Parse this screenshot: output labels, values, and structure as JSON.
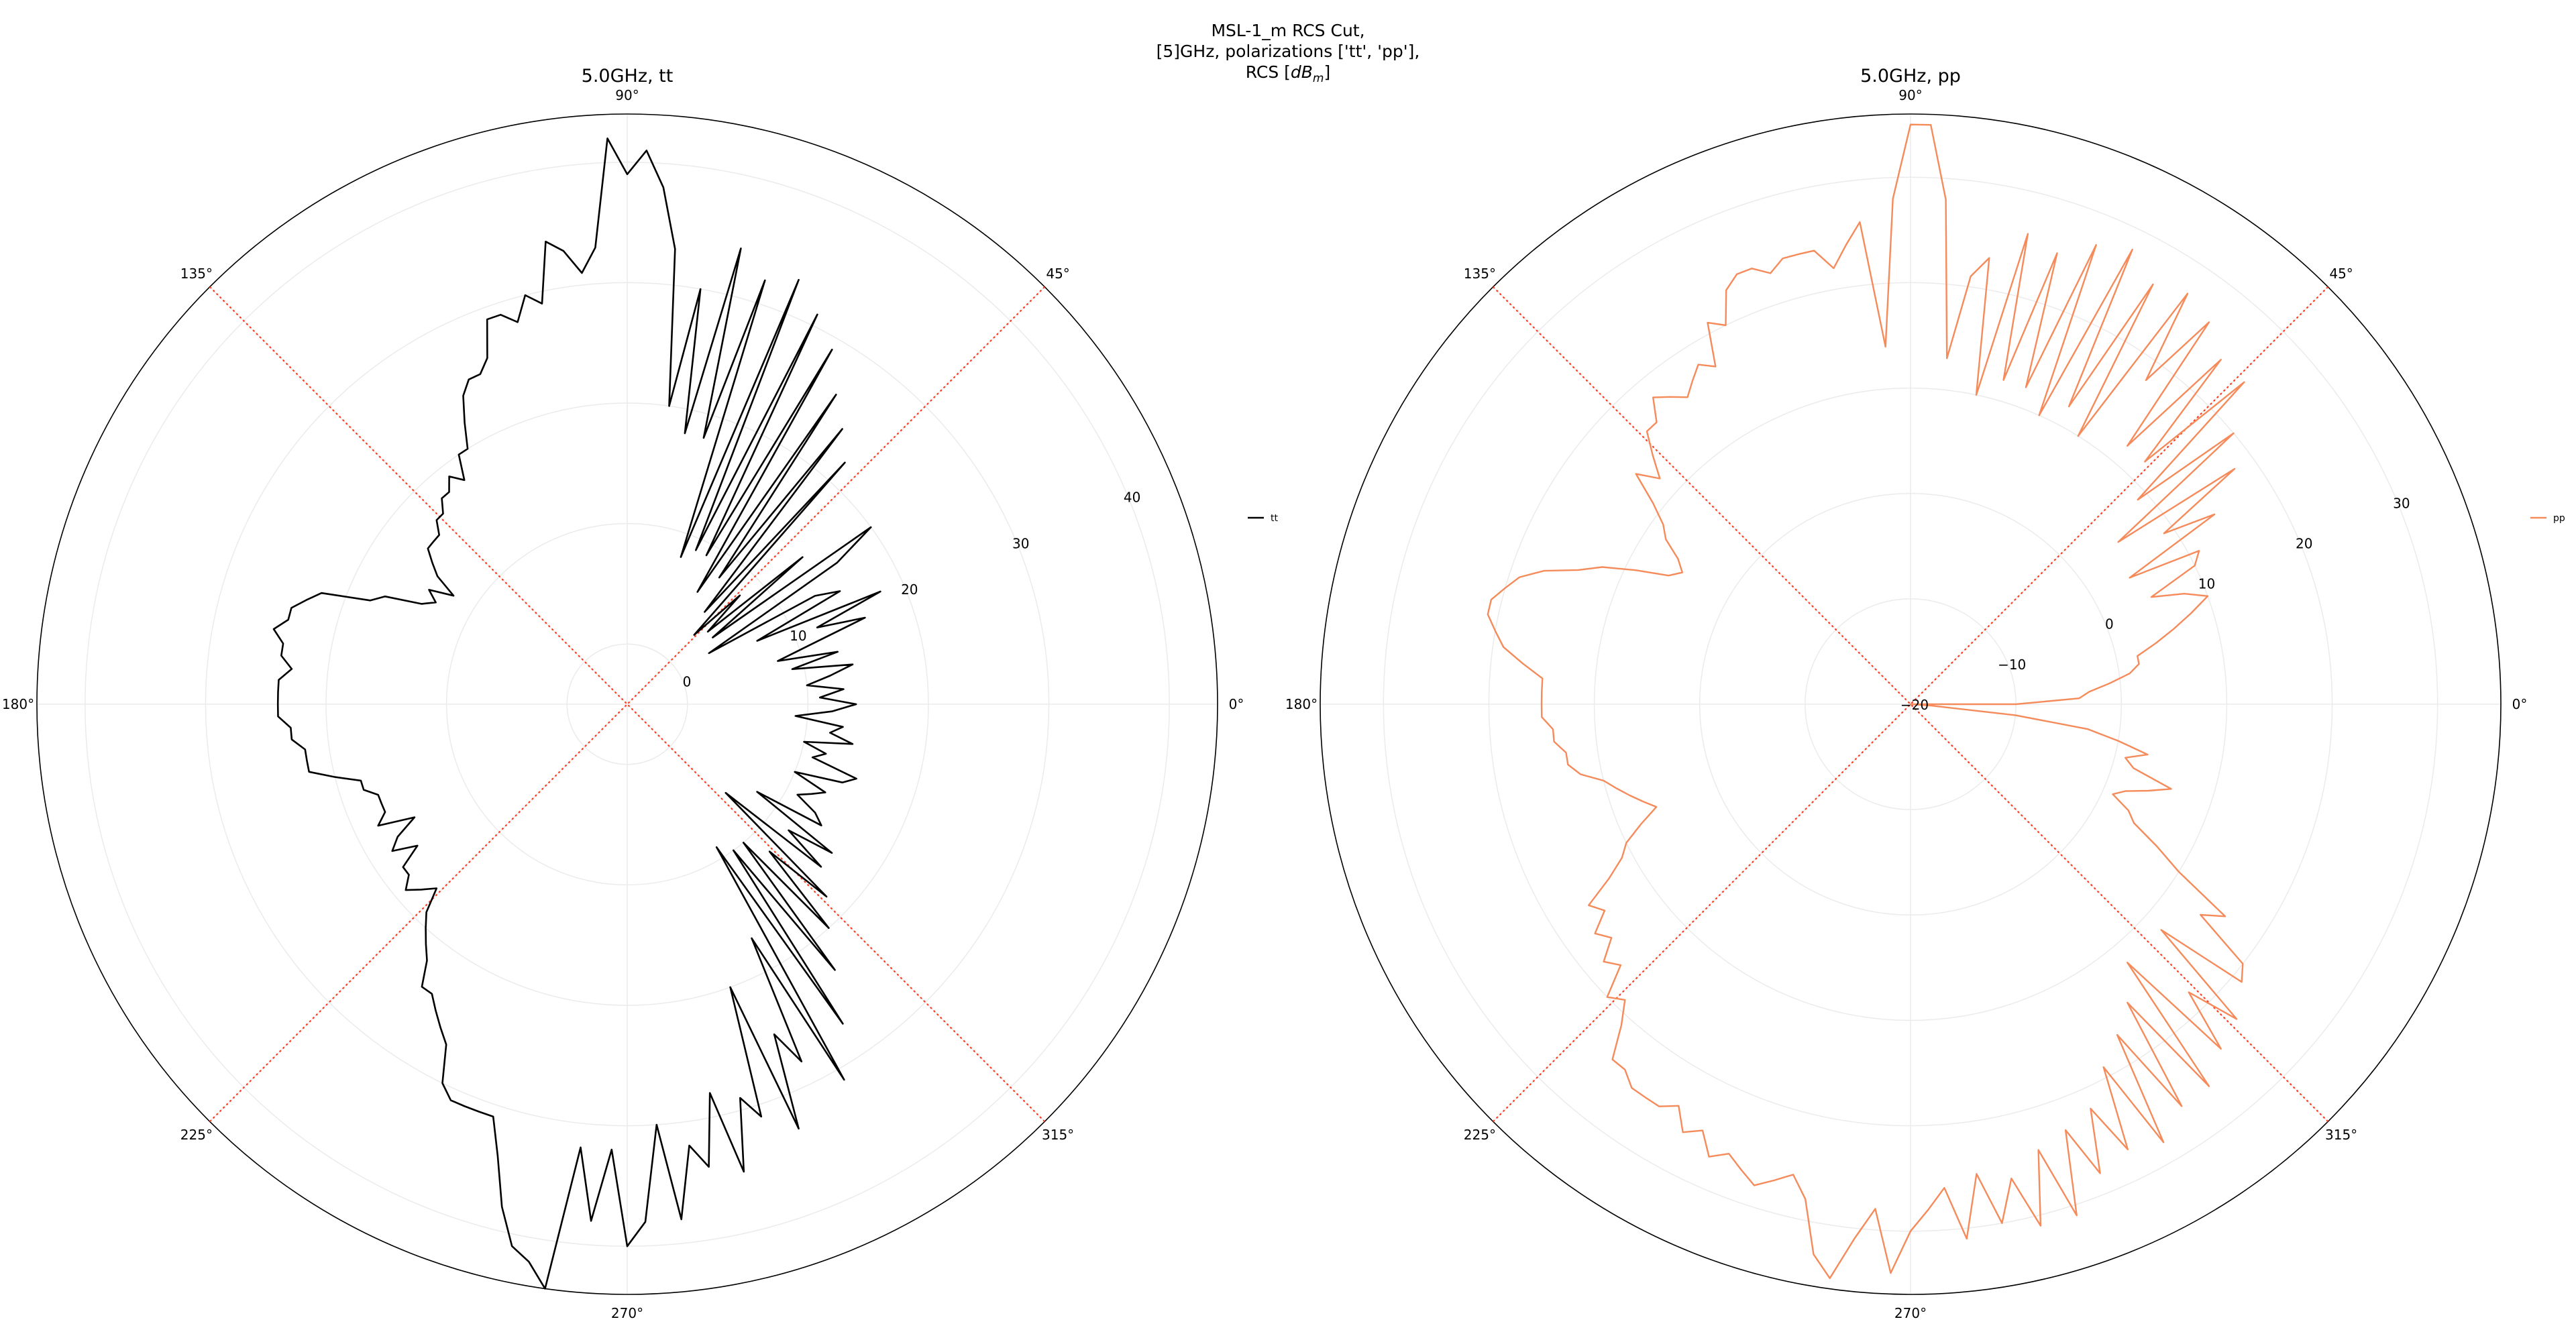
{
  "figure": {
    "title_lines": [
      "MSL-1_m RCS Cut,",
      "[5]GHz, polarizations ['tt', 'pp'],"
    ],
    "title_line3_prefix": "RCS [",
    "title_unit_base": "dB",
    "title_unit_sub": "m",
    "title_line3_suffix": "]",
    "guide_line_color": "#ff3b1f"
  },
  "chart_data": [
    {
      "type": "polar-line",
      "title": "5.0GHz, tt",
      "legend": {
        "label": "tt",
        "placement": "right"
      },
      "color": "#000000",
      "angle_unit": "deg",
      "angle_ticks": [
        "0°",
        "45°",
        "90°",
        "135°",
        "180°",
        "225°",
        "270°",
        "315°"
      ],
      "r_range": [
        -5,
        44
      ],
      "r_ticks": [
        0,
        10,
        20,
        30,
        40
      ],
      "r_tick_labels": [
        "0",
        "10",
        "20",
        "30",
        "40"
      ],
      "r_label_angle_deg": 22.5,
      "guide_angles_deg": [
        45,
        135
      ],
      "series": [
        {
          "name": "tt",
          "theta_deg": [
            0,
            2,
            4,
            6,
            8,
            10,
            12,
            14,
            16,
            18,
            20,
            22,
            24,
            26,
            28,
            30,
            32,
            34,
            36,
            38,
            40,
            42,
            44,
            46,
            48,
            50,
            52,
            54,
            56,
            58,
            60,
            62,
            64,
            66,
            68,
            70,
            72,
            74,
            76,
            78,
            80,
            82,
            84,
            86,
            88,
            90,
            92,
            94,
            96,
            98,
            100,
            102,
            104,
            106,
            108,
            110,
            112,
            114,
            116,
            118,
            120,
            122,
            124,
            126,
            128,
            130,
            132,
            134,
            136,
            138,
            140,
            142,
            144,
            146,
            148,
            150,
            152,
            154,
            156,
            158,
            160,
            162,
            164,
            166,
            168,
            170,
            172,
            174,
            176,
            178,
            180,
            182,
            184,
            186,
            188,
            190,
            192,
            194,
            196,
            198,
            200,
            202,
            204,
            206,
            208,
            210,
            212,
            214,
            216,
            218,
            220,
            222,
            224,
            226,
            228,
            230,
            232,
            234,
            236,
            238,
            240,
            242,
            244,
            246,
            248,
            250,
            252,
            254,
            256,
            258,
            260,
            262,
            264,
            266,
            268,
            270,
            272,
            274,
            276,
            278,
            280,
            282,
            284,
            286,
            288,
            290,
            292,
            294,
            296,
            298,
            300,
            302,
            304,
            306,
            308,
            310,
            312,
            314,
            316,
            318,
            320,
            322,
            324,
            326,
            328,
            330,
            332,
            334,
            336,
            338,
            340,
            342,
            344,
            346,
            348,
            350,
            352,
            354,
            356,
            358
          ],
          "r": [
            14,
            11,
            13,
            10,
            12,
            14,
            9,
            13,
            8,
            11,
            16,
            12,
            18,
            7,
            15,
            13,
            3,
            16,
            20,
            4,
            14,
            4,
            8,
            3,
            22,
            5,
            24,
            8,
            26,
            6,
            29,
            9,
            31,
            9,
            33,
            8,
            32,
            18,
            34,
            18,
            30,
            20,
            33,
            38,
            41,
            39,
            42,
            33,
            31,
            33,
            34,
            29,
            30,
            28,
            29,
            29,
            26,
            25,
            25,
            24,
            22,
            20,
            20,
            18,
            19,
            18,
            18,
            17,
            17,
            16,
            16,
            16,
            15,
            14,
            12,
            14,
            13,
            14,
            17,
            18,
            22,
            23,
            24,
            24,
            25,
            24,
            24,
            23,
            24,
            24,
            24,
            24,
            23,
            23,
            22,
            22,
            22,
            20,
            18,
            18,
            17,
            17,
            17,
            18,
            15,
            17,
            18,
            16,
            18,
            18,
            19,
            18,
            17,
            19,
            20,
            21,
            22,
            24,
            24,
            25,
            26,
            27,
            30,
            31,
            31,
            31,
            31,
            34,
            38,
            41,
            42,
            44,
            32,
            38,
            32,
            40,
            38,
            30,
            38,
            32,
            34,
            28,
            35,
            29,
            31,
            20,
            33,
            25,
            28,
            17,
            31,
            9,
            27,
            10,
            23,
            10,
            20,
            12,
            18,
            6,
            16,
            12,
            16,
            8,
            14,
            13,
            11,
            12,
            13,
            10,
            14,
            15,
            11,
            12,
            10,
            14,
            12,
            13,
            9,
            12
          ]
        }
      ]
    },
    {
      "type": "polar-line",
      "title": "5.0GHz, pp",
      "legend": {
        "label": "pp",
        "placement": "right"
      },
      "color": "#f58a5a",
      "angle_unit": "deg",
      "angle_ticks": [
        "0°",
        "45°",
        "90°",
        "135°",
        "180°",
        "225°",
        "270°",
        "315°"
      ],
      "r_range": [
        -20,
        36
      ],
      "r_ticks": [
        -20,
        -10,
        0,
        10,
        20,
        30
      ],
      "r_tick_labels": [
        "−20",
        "−10",
        "0",
        "10",
        "20",
        "30"
      ],
      "r_label_angle_deg": 22.5,
      "guide_angles_deg": [
        45,
        135
      ],
      "series": [
        {
          "name": "pp",
          "theta_deg": [
            0,
            2,
            4,
            6,
            8,
            10,
            12,
            14,
            16,
            18,
            20,
            22,
            24,
            26,
            28,
            30,
            32,
            34,
            36,
            38,
            40,
            42,
            44,
            46,
            48,
            50,
            52,
            54,
            56,
            58,
            60,
            62,
            64,
            66,
            68,
            70,
            72,
            74,
            76,
            78,
            80,
            82,
            84,
            86,
            88,
            90,
            92,
            94,
            96,
            98,
            100,
            102,
            104,
            106,
            108,
            110,
            112,
            114,
            116,
            118,
            120,
            122,
            124,
            126,
            128,
            130,
            132,
            134,
            136,
            138,
            140,
            142,
            144,
            146,
            148,
            150,
            152,
            154,
            156,
            158,
            160,
            162,
            164,
            166,
            168,
            170,
            172,
            174,
            176,
            178,
            180,
            182,
            184,
            186,
            188,
            190,
            192,
            194,
            196,
            198,
            200,
            202,
            204,
            206,
            208,
            210,
            212,
            214,
            216,
            218,
            220,
            222,
            224,
            226,
            228,
            230,
            232,
            234,
            236,
            238,
            240,
            242,
            244,
            246,
            248,
            250,
            252,
            254,
            256,
            258,
            260,
            262,
            264,
            266,
            268,
            270,
            272,
            274,
            276,
            278,
            280,
            282,
            284,
            286,
            288,
            290,
            292,
            294,
            296,
            298,
            300,
            302,
            304,
            306,
            308,
            310,
            312,
            314,
            316,
            318,
            320,
            322,
            324,
            326,
            328,
            330,
            332,
            334,
            336,
            338,
            340,
            342,
            344,
            346,
            348,
            350,
            352,
            354,
            356,
            358
          ],
          "r": [
            -10,
            -4,
            -3,
            -1,
            1,
            2,
            2,
            4,
            6,
            8,
            10,
            8,
            5,
            10,
            11,
            4,
            14,
            9,
            18,
            5,
            20,
            9,
            24,
            12,
            24,
            12,
            26,
            18,
            27,
            10,
            26,
            12,
            28,
            10,
            27,
            12,
            25,
            12,
            26,
            10,
            23,
            21,
            13,
            28,
            35,
            35,
            28,
            14,
            26,
            24,
            22,
            24,
            24,
            24,
            23,
            24,
            24,
            23,
            20,
            21,
            17,
            18,
            17,
            16,
            17,
            18,
            16,
            16,
            14,
            12,
            14,
            11,
            9,
            8,
            6,
            5,
            6,
            9,
            12,
            14,
            17,
            19,
            20,
            21,
            21,
            20,
            19,
            17,
            15,
            15,
            15,
            15,
            14,
            14,
            13,
            13,
            12,
            10,
            9,
            8,
            7,
            6,
            8,
            10,
            11,
            13,
            16,
            15,
            17,
            16,
            18,
            17,
            20,
            19,
            21,
            24,
            24,
            25,
            25,
            25,
            24,
            26,
            25,
            27,
            26,
            27,
            28,
            27,
            26,
            28,
            33,
            35,
            31,
            28,
            34,
            30,
            28,
            26,
            31,
            25,
            30,
            26,
            31,
            24,
            31,
            23,
            28,
            22,
            27,
            19,
            28,
            17,
            26,
            15,
            26,
            12,
            24,
            18,
            23,
            12,
            21,
            20,
            14,
            16,
            10,
            7,
            4,
            3,
            1,
            2,
            4,
            6,
            2,
            1,
            3,
            0,
            -3,
            -10,
            -18,
            -20
          ]
        }
      ]
    }
  ]
}
